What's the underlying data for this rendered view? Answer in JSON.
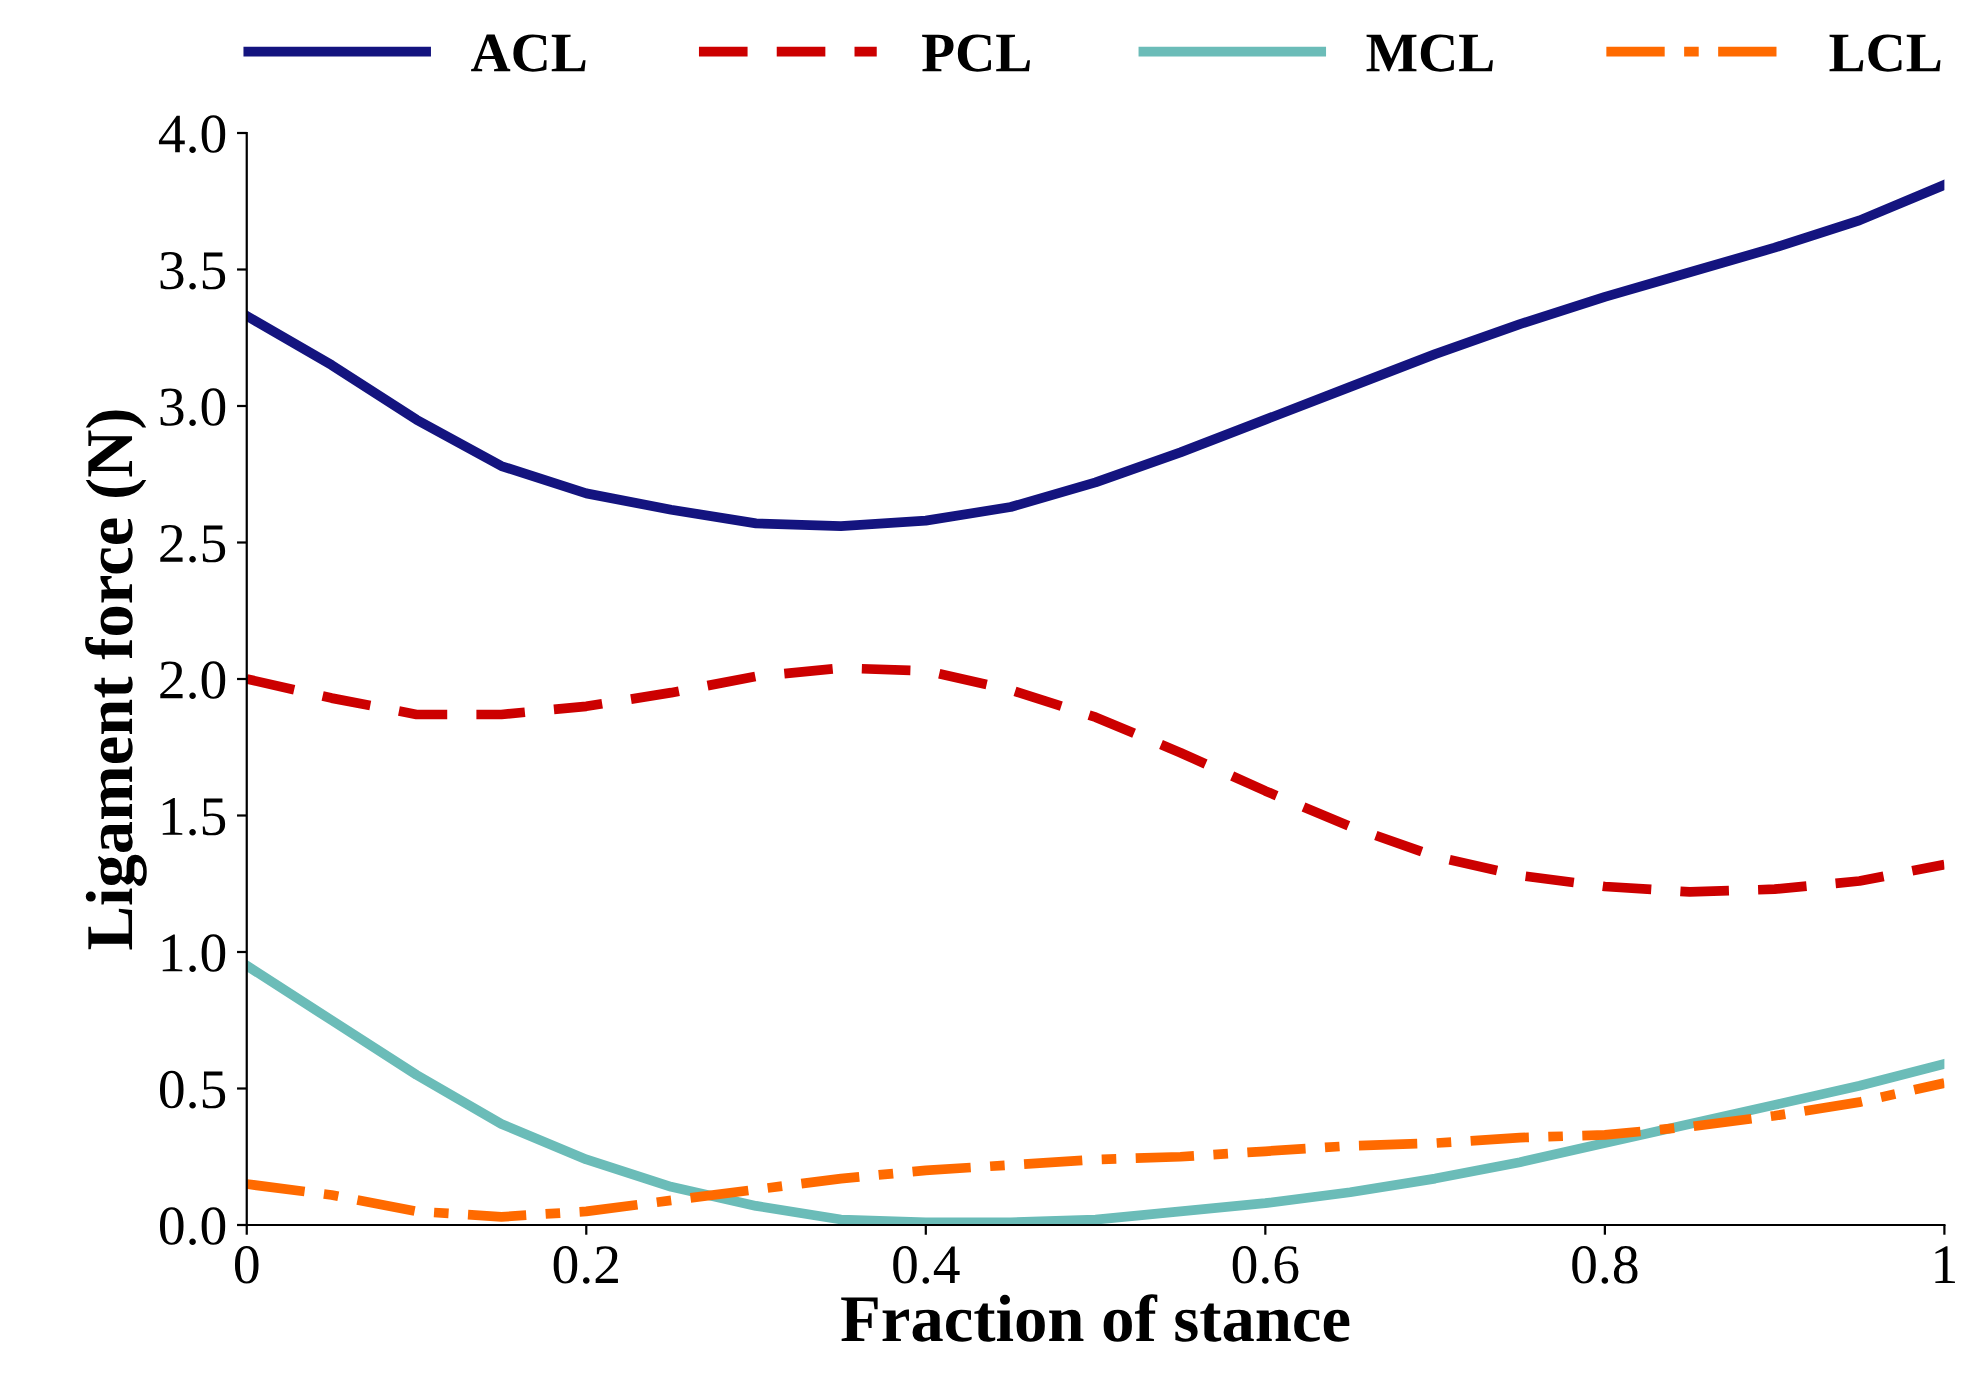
{
  "chart_data": {
    "type": "line",
    "xlabel": "Fraction of stance",
    "ylabel": "Ligament force (N)",
    "x": [
      0,
      0.05,
      0.1,
      0.15,
      0.2,
      0.25,
      0.3,
      0.35,
      0.4,
      0.45,
      0.5,
      0.55,
      0.6,
      0.65,
      0.7,
      0.75,
      0.8,
      0.85,
      0.9,
      0.95,
      1
    ],
    "series": [
      {
        "name": "ACL",
        "color": "#14147f",
        "line_style": "solid",
        "values": [
          3.33,
          3.15,
          2.95,
          2.78,
          2.68,
          2.62,
          2.57,
          2.56,
          2.58,
          2.63,
          2.72,
          2.83,
          2.95,
          3.07,
          3.19,
          3.3,
          3.4,
          3.49,
          3.58,
          3.68,
          3.81
        ]
      },
      {
        "name": "PCL",
        "color": "#cc0000",
        "line_style": "dashed",
        "values": [
          2.0,
          1.93,
          1.87,
          1.87,
          1.9,
          1.95,
          2.01,
          2.04,
          2.03,
          1.96,
          1.86,
          1.73,
          1.59,
          1.46,
          1.35,
          1.28,
          1.24,
          1.22,
          1.23,
          1.26,
          1.32
        ]
      },
      {
        "name": "MCL",
        "color": "#6bbcb8",
        "line_style": "solid",
        "values": [
          0.95,
          0.75,
          0.55,
          0.37,
          0.24,
          0.14,
          0.07,
          0.02,
          0.01,
          0.01,
          0.02,
          0.05,
          0.08,
          0.12,
          0.17,
          0.23,
          0.3,
          0.37,
          0.44,
          0.51,
          0.59
        ]
      },
      {
        "name": "LCL",
        "color": "#ff6a00",
        "line_style": "dashdot",
        "values": [
          0.15,
          0.11,
          0.05,
          0.03,
          0.05,
          0.09,
          0.13,
          0.17,
          0.2,
          0.22,
          0.24,
          0.25,
          0.27,
          0.29,
          0.3,
          0.32,
          0.33,
          0.36,
          0.4,
          0.45,
          0.52
        ]
      }
    ],
    "xlim": [
      0,
      1
    ],
    "ylim": [
      0,
      4
    ],
    "xticks": [
      0,
      0.2,
      0.4,
      0.6,
      0.8,
      1
    ],
    "yticks": [
      {
        "value": 0,
        "label": "0.0"
      },
      {
        "value": 0.5,
        "label": "0.5"
      },
      {
        "value": 1,
        "label": "1.0"
      },
      {
        "value": 1.5,
        "label": "1.5"
      },
      {
        "value": 2,
        "label": "2.0"
      },
      {
        "value": 2.5,
        "label": "2.5"
      },
      {
        "value": 3,
        "label": "3.0"
      },
      {
        "value": 3.5,
        "label": "3.5"
      },
      {
        "value": 4,
        "label": "4.0"
      }
    ],
    "legend": "top",
    "grid": false,
    "marker": "none"
  }
}
